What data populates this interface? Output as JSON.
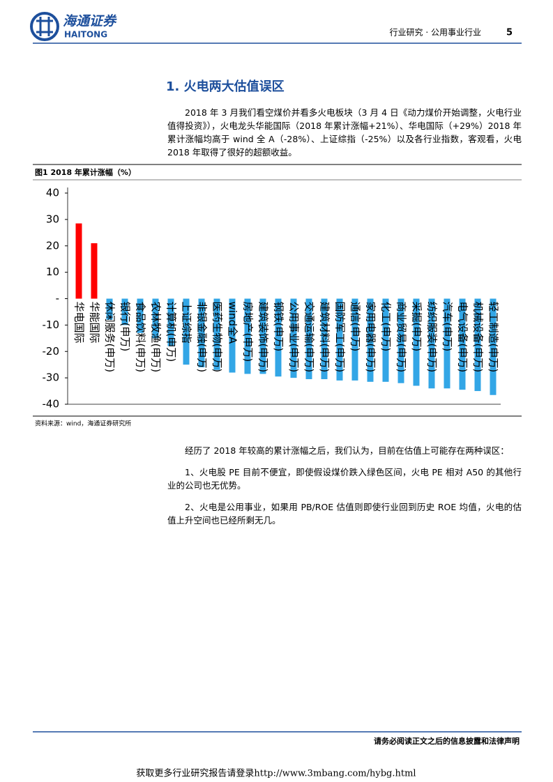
{
  "header": {
    "logo_cn": "海通证券",
    "logo_en": "HAITONG",
    "section": "行业研究 · 公用事业行业",
    "page": "5"
  },
  "heading": "1. 火电两大估值误区",
  "intro": "2018 年 3 月我们看空煤价并看多火电板块（3 月 4 日《动力煤价开始调整，火电行业值得投资》），火电龙头华能国际（2018 年累计涨幅+21%）、华电国际（+29%）2018 年累计涨幅均高于 wind 全 A（-28%）、上证综指（-25%）以及各行业指数，客观看，火电 2018 年取得了很好的超额收益。",
  "figure_caption": "图1  2018 年累计涨幅（%）",
  "figure_source": "资料来源：wind，海通证券研究所",
  "chart_data": {
    "type": "bar",
    "categories": [
      "华电国际",
      "华能国际",
      "休闲服务(申万)",
      "银行(申万)",
      "食品饮料(申万)",
      "农林牧渔(申万)",
      "计算机(申万)",
      "上证综指",
      "非银金融(申万)",
      "医药生物(申万)",
      "wind全A",
      "房地产(申万)",
      "建筑装饰(申万)",
      "钢铁(申万)",
      "公用事业(申万)",
      "交通运输(申万)",
      "建筑材料(申万)",
      "国防军工(申万)",
      "通信(申万)",
      "家用电器(申万)",
      "化工(申万)",
      "商业贸易(申万)",
      "采掘(申万)",
      "纺织服装(申万)",
      "汽车(申万)",
      "电气设备(申万)",
      "机械设备(申万)",
      "轻工制造(申万)"
    ],
    "values": [
      28.5,
      21,
      -8,
      -10,
      -13,
      -15,
      -18,
      -25,
      -26,
      -27,
      -28,
      -28.5,
      -28.5,
      -29.5,
      -30,
      -30.5,
      -30.5,
      -31,
      -31,
      -31.5,
      -31.5,
      -32,
      -33,
      -34,
      -34,
      -34.5,
      -35,
      -36.5
    ],
    "colors": {
      "positive": "#ff0000",
      "negative": "#33a6e6"
    },
    "ylim": [
      -40,
      40
    ],
    "yticks": [
      40,
      30,
      20,
      10,
      {
        "value": 0,
        "label": "-"
      },
      -10,
      -20,
      -30,
      -40
    ]
  },
  "paragraphs": [
    "经历了 2018 年较高的累计涨幅之后，我们认为，目前在估值上可能存在两种误区：",
    "1、火电股 PE 目前不便宜，即使假设煤价跌入绿色区间，火电 PE 相对 A50 的其他行业的公司也无优势。",
    "2、火电是公用事业，如果用 PB/ROE 估值则即使行业回到历史 ROE 均值，火电的估值上升空间也已经所剩无几。"
  ],
  "footer": {
    "disclaimer": "请务必阅读正文之后的信息披露和法律声明",
    "link": "获取更多行业研究报告请登录http://www.3mbang.com/hybg.html"
  }
}
